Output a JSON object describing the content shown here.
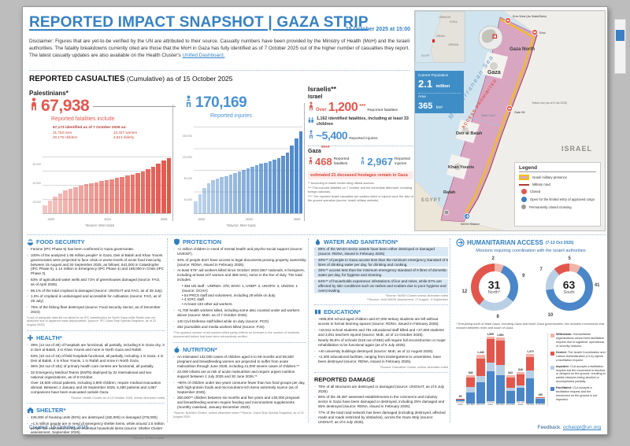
{
  "page": {
    "title": "REPORTED IMPACT SNAPSHOT | GAZA STRIP",
    "datetime": "15 October 2025 at 15:00",
    "disclaimer": "Disclaimer: Figures that are yet-to-be verified by the UN are attributed to their source. Casualty numbers have been provided by the Ministry of Health (MoH) and the Israeli authorities. The fatality breakdowns currently cited are those that the MoH in Gaza has fully identified as of 7 October 2025 out of the higher number of casualties they report. The latest casualty updates are also available on the Health Cluster's ",
    "disclaimer_link": "Unified Dashboard.",
    "created": "Created: 15 October 2025",
    "feedback_label": "Feedback: ",
    "feedback_email": "ochaopt@un.org"
  },
  "casualties": {
    "heading": "REPORTED CASUALTIES",
    "heading_suffix": " (Cumulative) as of 15 October 2025",
    "palestinians": {
      "label": "Palestinians*",
      "fatalities_number": "67,938",
      "fatalities_caption": "Reported fatalities include",
      "identified_heading": "67,173 identified as of 7 October 2025 as:",
      "breakdown": [
        "31,754 men",
        "10,427 women",
        "20,179 children",
        "4,813 elderly"
      ],
      "fatalities_source": "*Source: MoH Gaza",
      "injuries_number": "170,169",
      "injuries_caption": "Reported injuries",
      "injuries_source": "*Source: MoH Gaza"
    },
    "israelis": {
      "label": "Israelis**",
      "israel_label": "Israel",
      "over": "Over",
      "fatalities_number": "1,200",
      "stars": "***",
      "fatalities_caption": "Reported fatalities",
      "identified": "1,162 identified fatalities, including at least 33 children",
      "injuries_number": "~5,400",
      "injuries_caption": "Reported injuries",
      "gaza_label": "Gaza",
      "gaza_stars": "****",
      "gaza_fatalities_number": "468",
      "gaza_fatalities_caption": "Reported fatalities",
      "gaza_injuries_number": "2,967",
      "gaza_injuries_caption": "Reported injuries",
      "hostages_note": "estimated 21 deceased hostages remain in Gaza",
      "footnotes": [
        "** According to Israeli media citing official sources.",
        "*** This includes fatalities on 7 October and the immediate aftermath, including foreign nationals.",
        "**** The reported Israeli casualties are soldiers killed or injured since the start of the ground operation (source: Israeli military website)."
      ]
    }
  },
  "map": {
    "mediterranean": "Mediterranean Sea",
    "access_prohibited": "ACCESS PROHIBITED",
    "israel": "ISRAEL",
    "egypt": "EGYPT",
    "gaza_north": "Gaza North",
    "gaza_city": "Gaza",
    "deir_al_balah": "Deir al Balah",
    "khan_younis": "Khan Younis",
    "rafah": "Rafah",
    "wadi_gaza": "Wadi Gaza",
    "erez_west": "Erez West (As Siafa/Zikim)",
    "erez": "Erez",
    "gate_96": "Gate 96",
    "kerem_shalom": "Kerem Shalom",
    "yellow_line_note": "Yellow Line (as of 9 Oct 2025)",
    "inset_countries": {
      "lebanon": "LEBANON",
      "syria": "SYRIA",
      "israel": "ISRAEL",
      "jordan": "JORDAN",
      "egypt": "EGYPT"
    },
    "population": {
      "title": "Current Population",
      "value": "2.1",
      "unit": "million",
      "area_label": "Area",
      "area_value": "365",
      "area_unit": "km²"
    },
    "legend": {
      "title": "Legend",
      "military_presence": "Israeli military presence",
      "military_road": "Military road",
      "closed": "Closed",
      "open_cargo": "Open for the limited entry of approved cargo",
      "permanently_closed": "Permanently closed crossing"
    }
  },
  "sections": {
    "food_security": {
      "title": "FOOD SECURITY",
      "items": [
        "Famine (IPC Phase 5) has been confirmed in Gaza governorate.",
        "100% of the analyzed 1.95 million people* in Gaza, Deir al Balah and Khan Younis governorates were projected to face crisis or worse levels of acute food insecurity between 15 August and 30 September 2025, as follows: 641,000 in Catastrophe (IPC Phase 5), 1.14 million in Emergency (IPC Phase 4) and 198,000 in Crisis (IPC Phase 3).",
        "83% of agricultural water wells and 71% of greenhouses damaged (source: FAO, as of April 2025)",
        "86.1% of the total cropland is damaged (source: UNOSAT and FAO, as of 28 July)",
        "1.5% of cropland is undamaged and accessible for cultivation (source: FAO, as of 28 July)",
        "75% of the fishing fleet destroyed (source: Food Security Sector, as of December 2024)"
      ],
      "footnote": "*Lack of adequate data did not allow for an IPC classification for North Gaza while Rafah was not analyzed due to apparent mass depopulation. (source: IPC Gaza Strip Special Snapshot, as of 22 August 2025)"
    },
    "health": {
      "title": "HEALTH*",
      "items": [
        "39% (14 out of 36) of hospitals are functional, all partially, including 8 in Gaza city, 3 in Deir al Balah, 3 in Khan Younis and none in North Gaza and Rafah.",
        "63% (10 out of 16) of field hospitals functional, all partially, including 1 in Gaza, 4 in Deir al Balah, 4 in Khan Younis, 1 in Rafah and none in North Gaza.",
        "36% (64 out of 181) of primary health care centres are functional, all partially.",
        "32 Emergency Medical Teams (EMTs) deployed by 22 international and two national organizations, as of 8 October.",
        "Over 16,500 critical patients, including 3,800 children, require medical evacuation abroad. Between 1 January and 29 September 2025, 5,480 patients and 4,867 companions have been evacuated outside Gaza."
      ],
      "source": "*Source: Health Cluster as of 13 October 2025, unless otherwise noted"
    },
    "shelter": {
      "title": "SHELTER*",
      "items": [
        "436,000 of housing units (92%) are destroyed (160,000) or damaged (276,000).",
        "~1.5 million people are in need of emergency shelter items, while around 1.5 million people are estimated to require essential household items (source: Shelter Cluster assessment, September 2025)."
      ],
      "source": "*Source: Shelter Cluster"
    },
    "protection": {
      "title": "PROTECTION",
      "items": [
        {
          "text": "+1 million children in need of mental health and psycho-social support (source: UNICEF)."
        },
        {
          "text": "40% of people don't have access to legal documents proving property ownership (source: RDNA, issued in February 2025)."
        },
        {
          "text": "At least 575* aid workers killed since October 2023 (567 nationals, 8 foreigners, including at least 107 women and 388 men), some in the line of duty. The total includes:",
          "subs": [
            "384 UN staff - UNRWA: 378; WHO: 1, UNDP: 2, UNOPS: 2, UNDSS: 1 (source: OCHA)",
            "54 PRCS staff and volunteers, including 29 while on duty",
            "4 ICRC staff.",
            "At least 133 other aid workers."
          ]
        },
        {
          "text": "+1,700 health workers killed, including some also counted under aid workers above (source: MoH, as of 7 October 2025)."
        },
        {
          "text": "140 Civil Defense staff killed while on duty (source: PCD)"
        },
        {
          "text": "252 journalists and media workers killed (source: PJS)."
        }
      ],
      "footnote": "*The updated number of aid workers killed partly reflects an increase in the number of incidents documented before that have been retroactively verified."
    },
    "nutrition": {
      "title": "NUTRITION*",
      "items": [
        "An estimated 132,000 cases of children aged 6 to 59 months and 55,500 pregnant and breastfeeding women are projected to suffer from acute malnutrition through June 2026, including 41,000 severe cases of children.**",
        "22,000 infants are at risk of acute malnutrition and require urgent nutrition support between 1 July 2025 and 30 June 2026.**",
        "+90% of children under two years consume fewer than two food groups per day, with high-protein foods and micronutrient-rich items extremely scarce (as of September 2025).",
        "250,000** children between six months and five years and 130,000 pregnant and breastfeeding women require feeding and micronutrient supplements (monthly caseload, January-December 2025)."
      ],
      "footnote": "*Source: Nutrition Cluster, unless otherwise noted  **Source: Gaza Strip Special Snapshot, as of 22 August 2025"
    },
    "wash": {
      "title": "WATER AND SANITATION*",
      "items": [
        {
          "text": "89% of the WASH sector assets have been either destroyed or damaged (source: RDNA, issued in February 2025)",
          "hl": true
        },
        {
          "text": "49%** of people in Gaza access less than the minimum emergency standard of 6 litres of drinking water per day, for drinking and cooking.",
          "hl": true
        },
        {
          "text": "28%** access less than the minimum emergency standard of 9 litres of domestic water per day, for hygiene and cleaning.",
          "hl": true
        },
        {
          "text": "64%** of households experience infestations of lice and mites, while 57% are affected by skin conditions such as rashes and scabies due to poor hygiene and overcrowding.",
          "hl": true
        }
      ],
      "note1": "*Source: WASH Cluster unless otherwise noted",
      "note2": "**Source: Joint WASH Assessment, 17 August - 8 September"
    },
    "education": {
      "title": "EDUCATION*",
      "items": [
        "+658,000 school-aged children and 87,000 tertiary students are left without access to formal learning spaces (source: RDNA, issued in February 2025).",
        "+18,512 school students and 791 educational staff killed and +27,600 students and 3,051 teachers injured (source: MoE, as of 14 October 2025).",
        "Nearly 95.8% of schools (518 out of 564) will require full reconstruction or major rehabilitation to be functional again (as of 6 July 2025).",
        "+40 university buildings destroyed (source: MoE, as of 12 August 2025).",
        "+2,300 educational facilities, ranging from kindergartens to universities, have been destroyed (source: RDNA, issued in February 2025)."
      ],
      "note": "*Source: Education Cluster, unless otherwise noted"
    },
    "damage": {
      "title": "REPORTED DAMAGE",
      "items": [
        "78% of all structures are destroyed or damaged (source: UNOSAT, as of 8 July 2025).",
        "80% of the 49,397 assessed establishments in the commerce and industry sector in Gaza have been damaged or destroyed, including 25% damaged and 55% destroyed (source: RDNA, issued in February 2025).",
        "77% of the total road network has been damaged (including destroyed, affected roads and roads restricted by obstacles), across the Gaza Strip (source: UNOSAT, as of 8 July 2025)."
      ]
    }
  },
  "access": {
    "title": "HUMANITARIAN ACCESS",
    "period": "(7-13 Oct 2025)",
    "subtitle": "Missions requiring coordination with the Israeli authorities",
    "footnote": "* Everything north of Wadi Gaza, including Gaza and North Gaza governorates; this includes movements that crossed between north and south of Gaza.",
    "definitions": [
      {
        "term": "Withdrawn:",
        "text": " Humanitarian organizations cancel their facilitation request due to logistical, operational, or security reasons.",
        "color": "#f2b4a8"
      },
      {
        "term": "Denied:",
        "text": " The Israeli Coordination and Liaison Administration (CLA) rejects a facilitation request.",
        "color": "#e2574c"
      },
      {
        "term": "Impeded:",
        "text": " CLA accepts a facilitation request but the movement is blocked or delayed on the ground, resulting in partial missions being aborted or accomplished partially.",
        "color": "#b9cfe6"
      },
      {
        "term": "Facilitated:",
        "text": " CLA accepts a facilitation request and the movement on the ground is not impeded.",
        "color": "#4a86c8"
      }
    ]
  },
  "chart_data": [
    {
      "type": "bar",
      "title": "Palestinian reported fatalities (cumulative)",
      "x_range": "Oct 2023 - Oct 2025",
      "ymax": 70000,
      "color": "226,87,76",
      "yticks": [
        {
          "v": 60000,
          "label": "60,000"
        },
        {
          "v": 40000,
          "label": "40,000"
        },
        {
          "v": 20000,
          "label": "20,000"
        }
      ],
      "xticks": [
        {
          "idx": 1,
          "label": "2023"
        },
        {
          "idx": 12,
          "label": "2024"
        },
        {
          "idx": 23,
          "label": "2025"
        }
      ],
      "values": [
        9800,
        15200,
        20300,
        24800,
        28000,
        30500,
        32500,
        34200,
        35600,
        37000,
        38300,
        39600,
        40900,
        42200,
        43500,
        44800,
        46200,
        47900,
        49800,
        52000,
        54600,
        57800,
        61400,
        65000,
        67938
      ]
    },
    {
      "type": "bar",
      "title": "Palestinian reported injuries (cumulative)",
      "x_range": "Oct 2023 - Oct 2025",
      "ymax": 180000,
      "color": "74,134,200",
      "yticks": [
        {
          "v": 160000,
          "label": "160,000"
        },
        {
          "v": 120000,
          "label": "120,000"
        },
        {
          "v": 80000,
          "label": "80,000"
        },
        {
          "v": 40000,
          "label": "40,000"
        }
      ],
      "xticks": [
        {
          "idx": 1,
          "label": "2023"
        },
        {
          "idx": 12,
          "label": "2024"
        },
        {
          "idx": 23,
          "label": "2025"
        }
      ],
      "values": [
        24800,
        38600,
        52100,
        62200,
        68900,
        72000,
        75000,
        77700,
        79700,
        83000,
        87000,
        90600,
        93500,
        96600,
        99600,
        102500,
        105300,
        108200,
        111400,
        115200,
        119600,
        125500,
        140000,
        155000,
        170169
      ]
    },
    {
      "type": "pie",
      "title": "Missions requiring coordination with the Israeli authorities (7-13 Oct 2025)",
      "north": {
        "total": "31",
        "label": "North*",
        "segments": [
          {
            "name": "Withdrawn",
            "value": 2,
            "color": "#f2b4a8"
          },
          {
            "name": "Facilitated",
            "value": 9,
            "color": "#4a86c8"
          },
          {
            "name": "Impeded",
            "value": 8,
            "color": "#b9cfe6"
          },
          {
            "name": "Denied",
            "value": 12,
            "color": "#e2574c"
          }
        ]
      },
      "south": {
        "total": "63",
        "label": "South",
        "segments": [
          {
            "name": "Withdrawn",
            "value": 5,
            "color": "#f2b4a8"
          },
          {
            "name": "Facilitated",
            "value": 41,
            "color": "#4a86c8"
          },
          {
            "name": "Impeded",
            "value": 10,
            "color": "#b9cfe6"
          },
          {
            "name": "Denied",
            "value": 7,
            "color": "#e2574c"
          }
        ]
      }
    },
    {
      "type": "bar",
      "title": "Missions requiring coordination, by quarter",
      "stacked": true,
      "ymax": 2000,
      "series_order": [
        "Facilitated",
        "Impeded",
        "Denied",
        "Withdrawn"
      ],
      "colors": [
        "#4a86c8",
        "#b9cfe6",
        "#e2574c",
        "#f2b4a8"
      ],
      "bars": [
        {
          "label": "Oct-Dec",
          "year": "2023",
          "total": "65",
          "values": [
            40,
            5,
            15,
            5
          ]
        },
        {
          "label": "Jan-Mar",
          "year": "",
          "total": "848",
          "values": [
            340,
            146,
            282,
            80
          ]
        },
        {
          "label": "Apr-Jun",
          "year": "",
          "total": "1,448",
          "values": [
            644,
            186,
            505,
            113
          ]
        },
        {
          "label": "Jul-Sep",
          "year": "2024",
          "total": "1,895",
          "values": [
            875,
            255,
            690,
            75
          ]
        },
        {
          "label": "Oct-Dec",
          "year": "",
          "total": "1,960",
          "values": [
            850,
            300,
            714,
            96
          ]
        },
        {
          "label": "Jan-Mar",
          "year": "",
          "total": "843",
          "values": [
            371,
            91,
            304,
            77
          ]
        },
        {
          "label": "Apr-Jun",
          "year": "2025",
          "total": "846",
          "values": [
            380,
            70,
            340,
            56
          ]
        },
        {
          "label": "Jul-Sep",
          "year": "",
          "total": "1,470",
          "values": [
            744,
            230,
            402,
            94
          ]
        },
        {
          "label": "1-13 Oct",
          "year": "",
          "total": "190",
          "values": [
            152,
            10,
            23,
            5
          ]
        }
      ]
    }
  ]
}
